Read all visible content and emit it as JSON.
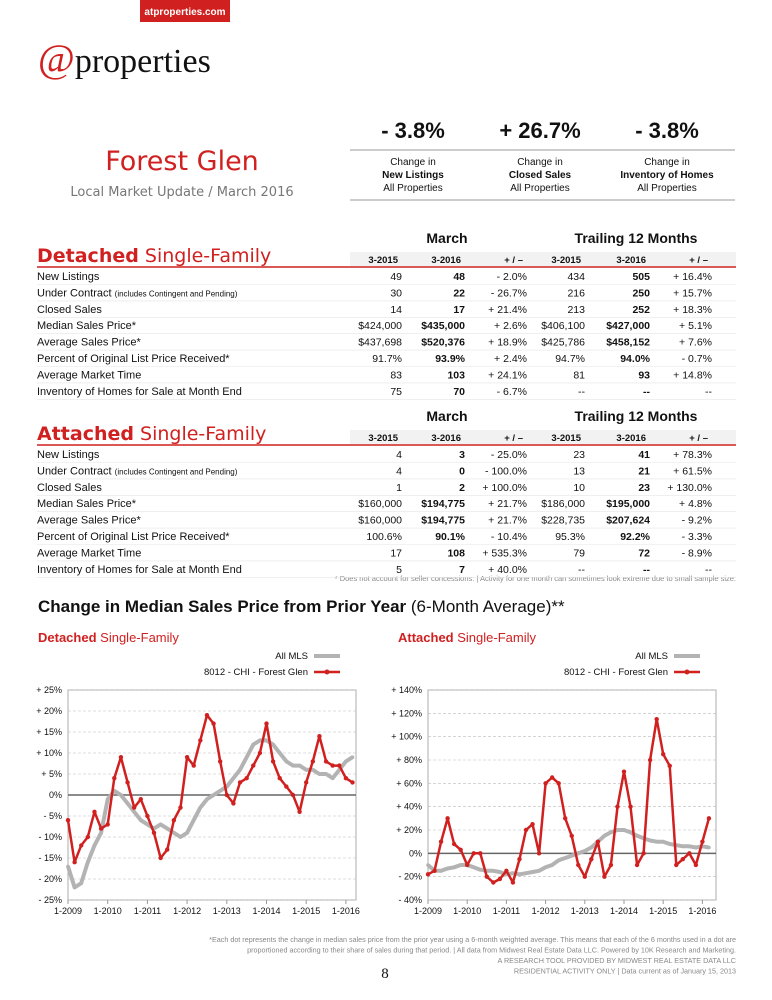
{
  "header": {
    "tag": "atproperties.com",
    "logo_at": "@",
    "logo_text": "properties",
    "title": "Forest Glen",
    "subtitle": "Local Market Update / March 2016"
  },
  "summary": [
    {
      "value": "- 3.8%",
      "line1": "Change in",
      "line2": "New Listings",
      "line3": "All Properties"
    },
    {
      "value": "+ 26.7%",
      "line1": "Change in",
      "line2": "Closed Sales",
      "line3": "All Properties"
    },
    {
      "value": "- 3.8%",
      "line1": "Change in",
      "line2": "Inventory of Homes",
      "line3": "All Properties"
    }
  ],
  "tables": [
    {
      "title_bold": "Detached",
      "title": "Single-Family",
      "group1": "March",
      "group2": "Trailing 12 Months",
      "columns": [
        "3-2015",
        "3-2016",
        "+ / –",
        "3-2015",
        "3-2016",
        "+ / –"
      ],
      "rows": [
        {
          "label": "New Listings",
          "values": [
            "49",
            "48",
            "- 2.0%",
            "434",
            "505",
            "+ 16.4%"
          ]
        },
        {
          "label": "Under Contract",
          "note": "(includes Contingent and Pending)",
          "values": [
            "30",
            "22",
            "- 26.7%",
            "216",
            "250",
            "+ 15.7%"
          ]
        },
        {
          "label": "Closed Sales",
          "values": [
            "14",
            "17",
            "+ 21.4%",
            "213",
            "252",
            "+ 18.3%"
          ]
        },
        {
          "label": "Median Sales Price*",
          "values": [
            "$424,000",
            "$435,000",
            "+ 2.6%",
            "$406,100",
            "$427,000",
            "+ 5.1%"
          ]
        },
        {
          "label": "Average Sales Price*",
          "values": [
            "$437,698",
            "$520,376",
            "+ 18.9%",
            "$425,786",
            "$458,152",
            "+ 7.6%"
          ]
        },
        {
          "label": "Percent of Original List Price Received*",
          "values": [
            "91.7%",
            "93.9%",
            "+ 2.4%",
            "94.7%",
            "94.0%",
            "- 0.7%"
          ]
        },
        {
          "label": "Average Market Time",
          "values": [
            "83",
            "103",
            "+ 24.1%",
            "81",
            "93",
            "+ 14.8%"
          ]
        },
        {
          "label": "Inventory of Homes for Sale at Month End",
          "values": [
            "75",
            "70",
            "- 6.7%",
            "--",
            "--",
            "--"
          ]
        }
      ]
    },
    {
      "title_bold": "Attached",
      "title": "Single-Family",
      "group1": "March",
      "group2": "Trailing 12 Months",
      "columns": [
        "3-2015",
        "3-2016",
        "+ / –",
        "3-2015",
        "3-2016",
        "+ / –"
      ],
      "rows": [
        {
          "label": "New Listings",
          "values": [
            "4",
            "3",
            "- 25.0%",
            "23",
            "41",
            "+ 78.3%"
          ]
        },
        {
          "label": "Under Contract",
          "note": "(includes Contingent and Pending)",
          "values": [
            "4",
            "0",
            "- 100.0%",
            "13",
            "21",
            "+ 61.5%"
          ]
        },
        {
          "label": "Closed Sales",
          "values": [
            "1",
            "2",
            "+ 100.0%",
            "10",
            "23",
            "+ 130.0%"
          ]
        },
        {
          "label": "Median Sales Price*",
          "values": [
            "$160,000",
            "$194,775",
            "+ 21.7%",
            "$186,000",
            "$195,000",
            "+ 4.8%"
          ]
        },
        {
          "label": "Average Sales Price*",
          "values": [
            "$160,000",
            "$194,775",
            "+ 21.7%",
            "$228,735",
            "$207,624",
            "- 9.2%"
          ]
        },
        {
          "label": "Percent of Original List Price Received*",
          "values": [
            "100.6%",
            "90.1%",
            "- 10.4%",
            "95.3%",
            "92.2%",
            "- 3.3%"
          ]
        },
        {
          "label": "Average Market Time",
          "values": [
            "17",
            "108",
            "+ 535.3%",
            "79",
            "72",
            "- 8.9%"
          ]
        },
        {
          "label": "Inventory of Homes for Sale at Month End",
          "values": [
            "5",
            "7",
            "+ 40.0%",
            "--",
            "--",
            "--"
          ]
        }
      ]
    }
  ],
  "table_note": "* Does not account for seller concessions.  |  Activity for one month can sometimes look extreme due to small sample size.",
  "charts_title_bold": "Change in Median Sales Price from Prior Year",
  "charts_title": "(6-Month Average)**",
  "chart_data": [
    {
      "type": "line",
      "title_bold": "Detached",
      "title": "Single-Family",
      "categories": [
        "1-2009",
        null,
        null,
        null,
        null,
        null,
        "1-2010",
        null,
        null,
        null,
        null,
        null,
        "1-2011",
        null,
        null,
        null,
        null,
        null,
        "1-2012",
        null,
        null,
        null,
        null,
        null,
        "1-2013",
        null,
        null,
        null,
        null,
        null,
        "1-2014",
        null,
        null,
        null,
        null,
        null,
        "1-2015",
        null,
        null,
        null,
        null,
        null,
        "1-2016",
        null
      ],
      "series": [
        {
          "name": "All MLS",
          "color": "#b3b3b3",
          "values": [
            -17,
            -22,
            -21,
            -16,
            -12,
            -9,
            -1,
            1,
            0,
            -2,
            -4,
            -6,
            -7,
            -8,
            -7,
            -8,
            -9,
            -10,
            -9,
            -6,
            -3,
            -1,
            0,
            1,
            2,
            4,
            6,
            9,
            12,
            13,
            13,
            12,
            10,
            8,
            7,
            7,
            6,
            6,
            5,
            5,
            4,
            6,
            8,
            9
          ]
        },
        {
          "name": "8012 - CHI - Forest Glen",
          "color": "#d0201f",
          "values": [
            -6,
            -16,
            -12,
            -10,
            -4,
            -8,
            -7,
            4,
            9,
            3,
            -3,
            -1,
            -5,
            -9,
            -15,
            -13,
            -6,
            -3,
            9,
            7,
            13,
            19,
            17,
            8,
            0,
            -2,
            3,
            4,
            7,
            10,
            17,
            8,
            4,
            2,
            0,
            -4,
            3,
            8,
            14,
            8,
            7,
            7,
            4,
            3
          ]
        }
      ],
      "ylim": [
        -25,
        25
      ],
      "yticks": [
        {
          "value": -25,
          "label": "- 25%"
        },
        {
          "value": -20,
          "label": "- 20%"
        },
        {
          "value": -15,
          "label": "- 15%"
        },
        {
          "value": -10,
          "label": "- 10%"
        },
        {
          "value": -5,
          "label": "- 5%"
        },
        {
          "value": 0,
          "label": "0%"
        },
        {
          "value": 5,
          "label": "+ 5%"
        },
        {
          "value": 10,
          "label": "+ 10%"
        },
        {
          "value": 15,
          "label": "+ 15%"
        },
        {
          "value": 20,
          "label": "+ 20%"
        },
        {
          "value": 25,
          "label": "+ 25%"
        }
      ],
      "grid": true
    },
    {
      "type": "line",
      "title_bold": "Attached",
      "title": "Single-Family",
      "categories": [
        "1-2009",
        null,
        null,
        null,
        null,
        null,
        "1-2010",
        null,
        null,
        null,
        null,
        null,
        "1-2011",
        null,
        null,
        null,
        null,
        null,
        "1-2012",
        null,
        null,
        null,
        null,
        null,
        "1-2013",
        null,
        null,
        null,
        null,
        null,
        "1-2014",
        null,
        null,
        null,
        null,
        null,
        "1-2015",
        null,
        null,
        null,
        null,
        null,
        "1-2016",
        null
      ],
      "series": [
        {
          "name": "All MLS",
          "color": "#b3b3b3",
          "values": [
            -10,
            -15,
            -15,
            -13,
            -12,
            -10,
            -10,
            -12,
            -14,
            -15,
            -15,
            -16,
            -18,
            -17,
            -18,
            -17,
            -16,
            -15,
            -12,
            -10,
            -6,
            -4,
            -2,
            0,
            2,
            5,
            10,
            15,
            18,
            20,
            20,
            18,
            15,
            13,
            11,
            10,
            10,
            8,
            7,
            6,
            6,
            5,
            6,
            5
          ]
        },
        {
          "name": "8012 - CHI - Forest Glen",
          "color": "#d0201f",
          "values": [
            -18,
            -15,
            10,
            30,
            8,
            3,
            -10,
            0,
            0,
            -20,
            -25,
            -22,
            -15,
            -25,
            -5,
            20,
            25,
            0,
            60,
            65,
            60,
            30,
            15,
            -10,
            -20,
            -5,
            10,
            -20,
            -10,
            40,
            70,
            40,
            -10,
            0,
            80,
            115,
            85,
            75,
            -10,
            -5,
            0,
            -10,
            10,
            30
          ]
        }
      ],
      "ylim": [
        -40,
        140
      ],
      "yticks": [
        {
          "value": -40,
          "label": "- 40%"
        },
        {
          "value": -20,
          "label": "- 20%"
        },
        {
          "value": 0,
          "label": "0%"
        },
        {
          "value": 20,
          "label": "+ 20%"
        },
        {
          "value": 40,
          "label": "+ 40%"
        },
        {
          "value": 60,
          "label": "+ 60%"
        },
        {
          "value": 80,
          "label": "+ 80%"
        },
        {
          "value": 100,
          "label": "+ 100%"
        },
        {
          "value": 120,
          "label": "+ 120%"
        },
        {
          "value": 140,
          "label": "+ 140%"
        }
      ],
      "grid": true
    }
  ],
  "footer": {
    "lines": [
      "*Each dot represents the change in median sales price from the prior year using a 6-month weighted average. This means that each of the 6 months used in a dot are",
      "proportioned according to their share of sales during that period.  |  All data from Midwest Real Estate Data LLC. Powered by 10K Research and Marketing.",
      "A RESEARCH TOOL PROVIDED BY MIDWEST REAL ESTATE DATA LLC",
      "RESIDENTIAL ACTIVITY ONLY  |  Data current as of January 15, 2013"
    ],
    "page": "8"
  }
}
